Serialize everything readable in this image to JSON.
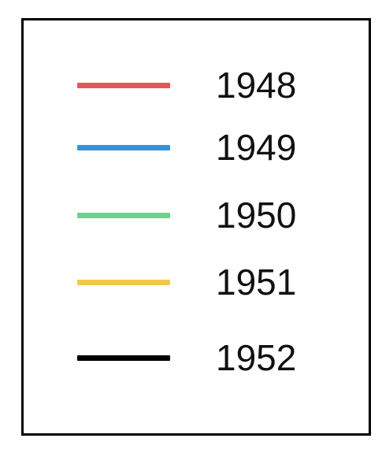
{
  "chart_data": {
    "type": "line",
    "legend": {
      "placement": "standalone",
      "entries": [
        {
          "label": "1948",
          "color": "#e8555a"
        },
        {
          "label": "1949",
          "color": "#2f95e0"
        },
        {
          "label": "1950",
          "color": "#6fd18e"
        },
        {
          "label": "1951",
          "color": "#f2c84b"
        },
        {
          "label": "1952",
          "color": "#000000"
        }
      ]
    }
  }
}
